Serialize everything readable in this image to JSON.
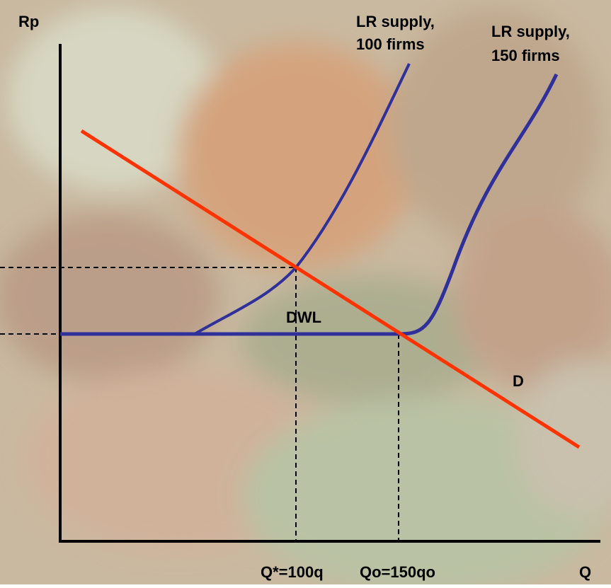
{
  "axes": {
    "y_label": "Rp",
    "x_label": "Q"
  },
  "curves": {
    "supply_100": {
      "line1": "LR supply,",
      "line2": "100 firms"
    },
    "supply_150": {
      "line1": "LR supply,",
      "line2": "150 firms"
    },
    "demand": {
      "label": "D"
    }
  },
  "area": {
    "label": "DWL"
  },
  "x_markers": [
    "Q*=100q",
    "Qo=150qo"
  ]
}
